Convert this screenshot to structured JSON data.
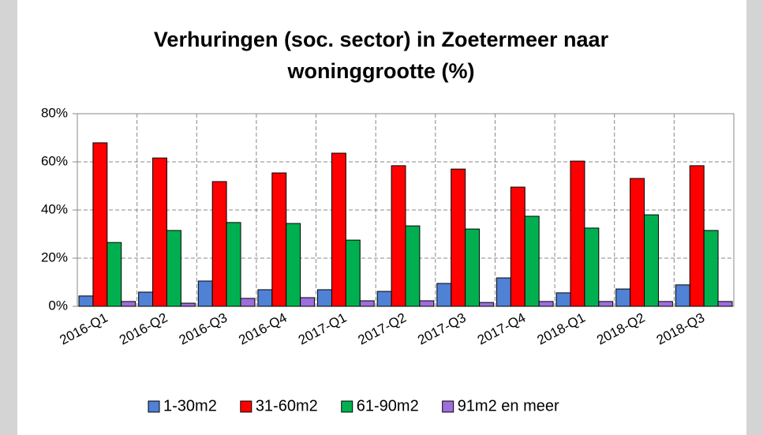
{
  "chart_data": {
    "type": "bar",
    "title": "Verhuringen (soc. sector) in Zoetermeer naar woninggrootte (%)",
    "categories": [
      "2016-Q1",
      "2016-Q2",
      "2016-Q3",
      "2016-Q4",
      "2017-Q1",
      "2017-Q2",
      "2017-Q3",
      "2017-Q4",
      "2018-Q1",
      "2018-Q2",
      "2018-Q3"
    ],
    "series": [
      {
        "name": "1-30m2",
        "color": "#4f81d4",
        "values": [
          4.3,
          5.9,
          10.5,
          6.9,
          6.9,
          6.2,
          9.5,
          11.8,
          5.6,
          7.2,
          8.9
        ]
      },
      {
        "name": "31-60m2",
        "color": "#ff0000",
        "values": [
          67.9,
          61.6,
          51.8,
          55.4,
          63.6,
          58.4,
          57,
          49.5,
          60.3,
          53.1,
          58.4
        ]
      },
      {
        "name": "61-90m2",
        "color": "#00b050",
        "values": [
          26.5,
          31.5,
          34.8,
          34.4,
          27.5,
          33.4,
          32.1,
          37.4,
          32.5,
          38,
          31.5
        ]
      },
      {
        "name": "91m2 en meer",
        "color": "#9f6ddc",
        "values": [
          2,
          1.3,
          3.3,
          3.6,
          2.3,
          2.3,
          1.6,
          2,
          2,
          2,
          2
        ]
      }
    ],
    "ylim": [
      0,
      80
    ],
    "yticks": [
      {
        "value": 0,
        "label": "0%"
      },
      {
        "value": 20,
        "label": "20%"
      },
      {
        "value": 40,
        "label": "40%"
      },
      {
        "value": 60,
        "label": "60%"
      },
      {
        "value": 80,
        "label": "80%"
      }
    ],
    "grid": true,
    "legend": "bottom"
  }
}
